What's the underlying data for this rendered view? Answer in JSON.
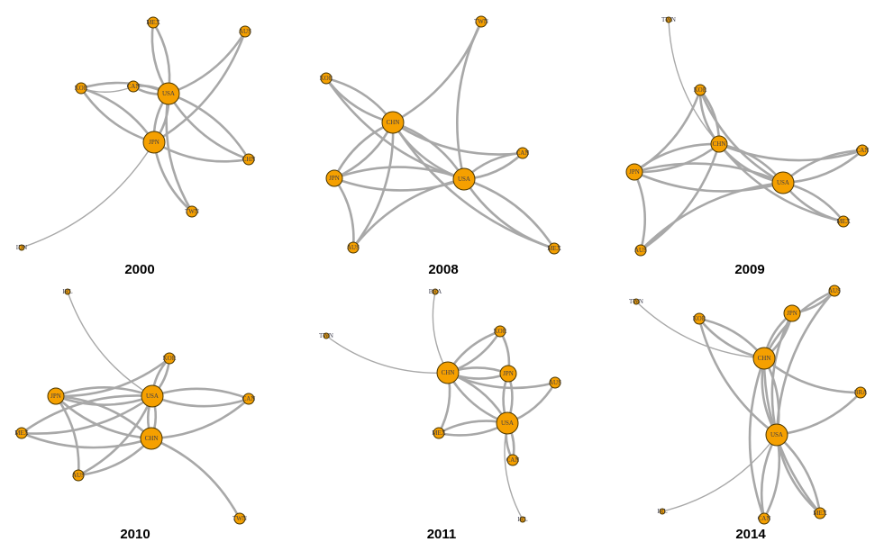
{
  "colors": {
    "node_fill": "#f5a000",
    "node_stroke": "#4a3600",
    "edge": "#a8a8a8",
    "background": "#ffffff"
  },
  "panels": [
    {
      "title": "2000",
      "nodes": [
        {
          "id": "MEX",
          "size": "small"
        },
        {
          "id": "AUS",
          "size": "small"
        },
        {
          "id": "KOR",
          "size": "small"
        },
        {
          "id": "CAN",
          "size": "small"
        },
        {
          "id": "USA",
          "size": "large"
        },
        {
          "id": "JPN",
          "size": "large"
        },
        {
          "id": "CHN",
          "size": "small"
        },
        {
          "id": "TWN",
          "size": "small"
        },
        {
          "id": "IDN",
          "size": "tiny"
        }
      ],
      "edges": [
        [
          "USA",
          "MEX"
        ],
        [
          "MEX",
          "USA"
        ],
        [
          "USA",
          "AUS"
        ],
        [
          "JPN",
          "AUS"
        ],
        [
          "USA",
          "KOR"
        ],
        [
          "JPN",
          "KOR"
        ],
        [
          "CAN",
          "USA"
        ],
        [
          "USA",
          "CAN"
        ],
        [
          "JPN",
          "USA"
        ],
        [
          "USA",
          "JPN"
        ],
        [
          "USA",
          "CHN"
        ],
        [
          "JPN",
          "CHN"
        ],
        [
          "USA",
          "TWN"
        ],
        [
          "JPN",
          "TWN"
        ],
        [
          "IDN",
          "JPN"
        ],
        [
          "CHN",
          "USA"
        ],
        [
          "KOR",
          "JPN"
        ],
        [
          "KOR",
          "CAN"
        ]
      ]
    },
    {
      "title": "2008",
      "nodes": [
        {
          "id": "TWN",
          "size": "small"
        },
        {
          "id": "KOR",
          "size": "small"
        },
        {
          "id": "CHN",
          "size": "large"
        },
        {
          "id": "CAN",
          "size": "small"
        },
        {
          "id": "JPN",
          "size": "medium"
        },
        {
          "id": "USA",
          "size": "large"
        },
        {
          "id": "AUS",
          "size": "small"
        },
        {
          "id": "MEX",
          "size": "small"
        }
      ],
      "edges": [
        [
          "TWN",
          "USA"
        ],
        [
          "CHN",
          "TWN"
        ],
        [
          "KOR",
          "CHN"
        ],
        [
          "CHN",
          "KOR"
        ],
        [
          "KOR",
          "USA"
        ],
        [
          "CHN",
          "CAN"
        ],
        [
          "USA",
          "CAN"
        ],
        [
          "CAN",
          "USA"
        ],
        [
          "JPN",
          "CHN"
        ],
        [
          "CHN",
          "JPN"
        ],
        [
          "JPN",
          "USA"
        ],
        [
          "USA",
          "JPN"
        ],
        [
          "CHN",
          "USA"
        ],
        [
          "USA",
          "CHN"
        ],
        [
          "AUS",
          "CHN"
        ],
        [
          "AUS",
          "JPN"
        ],
        [
          "USA",
          "AUS"
        ],
        [
          "USA",
          "MEX"
        ],
        [
          "MEX",
          "USA"
        ],
        [
          "CHN",
          "MEX"
        ]
      ]
    },
    {
      "title": "2009",
      "nodes": [
        {
          "id": "TWN",
          "size": "tiny"
        },
        {
          "id": "KOR",
          "size": "small"
        },
        {
          "id": "CHN",
          "size": "medium"
        },
        {
          "id": "CAN",
          "size": "small"
        },
        {
          "id": "JPN",
          "size": "medium"
        },
        {
          "id": "USA",
          "size": "large"
        },
        {
          "id": "MEX",
          "size": "small"
        },
        {
          "id": "AUS",
          "size": "small"
        }
      ],
      "edges": [
        [
          "TWN",
          "CHN"
        ],
        [
          "KOR",
          "CHN"
        ],
        [
          "CHN",
          "KOR"
        ],
        [
          "KOR",
          "USA"
        ],
        [
          "JPN",
          "KOR"
        ],
        [
          "CHN",
          "CAN"
        ],
        [
          "USA",
          "CAN"
        ],
        [
          "CAN",
          "USA"
        ],
        [
          "JPN",
          "CHN"
        ],
        [
          "CHN",
          "JPN"
        ],
        [
          "JPN",
          "USA"
        ],
        [
          "USA",
          "JPN"
        ],
        [
          "CHN",
          "USA"
        ],
        [
          "USA",
          "CHN"
        ],
        [
          "USA",
          "MEX"
        ],
        [
          "MEX",
          "USA"
        ],
        [
          "CHN",
          "MEX"
        ],
        [
          "AUS",
          "JPN"
        ],
        [
          "USA",
          "AUS"
        ],
        [
          "AUS",
          "CHN"
        ]
      ]
    },
    {
      "title": "2010",
      "nodes": [
        {
          "id": "IRL",
          "size": "tiny"
        },
        {
          "id": "KOR",
          "size": "small"
        },
        {
          "id": "JPN",
          "size": "medium"
        },
        {
          "id": "USA",
          "size": "large"
        },
        {
          "id": "CAN",
          "size": "small"
        },
        {
          "id": "MEX",
          "size": "small"
        },
        {
          "id": "CHN",
          "size": "large"
        },
        {
          "id": "AUS",
          "size": "small"
        },
        {
          "id": "TWN",
          "size": "small"
        }
      ],
      "edges": [
        [
          "IRL",
          "USA"
        ],
        [
          "KOR",
          "USA"
        ],
        [
          "USA",
          "KOR"
        ],
        [
          "JPN",
          "KOR"
        ],
        [
          "JPN",
          "USA"
        ],
        [
          "USA",
          "JPN"
        ],
        [
          "JPN",
          "CHN"
        ],
        [
          "CHN",
          "JPN"
        ],
        [
          "USA",
          "CAN"
        ],
        [
          "CAN",
          "USA"
        ],
        [
          "CHN",
          "CAN"
        ],
        [
          "MEX",
          "USA"
        ],
        [
          "USA",
          "MEX"
        ],
        [
          "MEX",
          "CHN"
        ],
        [
          "CHN",
          "USA"
        ],
        [
          "USA",
          "CHN"
        ],
        [
          "AUS",
          "JPN"
        ],
        [
          "AUS",
          "USA"
        ],
        [
          "AUS",
          "CHN"
        ],
        [
          "TWN",
          "CHN"
        ]
      ]
    },
    {
      "title": "2011",
      "nodes": [
        {
          "id": "BRA",
          "size": "tiny"
        },
        {
          "id": "TWN",
          "size": "tiny"
        },
        {
          "id": "KOR",
          "size": "small"
        },
        {
          "id": "CHN",
          "size": "large"
        },
        {
          "id": "JPN",
          "size": "medium"
        },
        {
          "id": "AUS",
          "size": "small"
        },
        {
          "id": "MEX",
          "size": "small"
        },
        {
          "id": "USA",
          "size": "large"
        },
        {
          "id": "CAN",
          "size": "small"
        },
        {
          "id": "IRL",
          "size": "tiny"
        }
      ],
      "edges": [
        [
          "BRA",
          "CHN"
        ],
        [
          "TWN",
          "CHN"
        ],
        [
          "CHN",
          "KOR"
        ],
        [
          "KOR",
          "CHN"
        ],
        [
          "JPN",
          "KOR"
        ],
        [
          "CHN",
          "JPN"
        ],
        [
          "JPN",
          "CHN"
        ],
        [
          "JPN",
          "USA"
        ],
        [
          "USA",
          "JPN"
        ],
        [
          "CHN",
          "AUS"
        ],
        [
          "USA",
          "AUS"
        ],
        [
          "CHN",
          "USA"
        ],
        [
          "USA",
          "CHN"
        ],
        [
          "MEX",
          "CHN"
        ],
        [
          "USA",
          "MEX"
        ],
        [
          "MEX",
          "USA"
        ],
        [
          "USA",
          "CAN"
        ],
        [
          "CAN",
          "USA"
        ],
        [
          "USA",
          "IRL"
        ]
      ]
    },
    {
      "title": "2014",
      "nodes": [
        {
          "id": "TWN",
          "size": "tiny"
        },
        {
          "id": "KOR",
          "size": "small"
        },
        {
          "id": "AUS",
          "size": "small"
        },
        {
          "id": "JPN",
          "size": "medium"
        },
        {
          "id": "CHN",
          "size": "large"
        },
        {
          "id": "BRA",
          "size": "small"
        },
        {
          "id": "USA",
          "size": "large"
        },
        {
          "id": "IRL",
          "size": "tiny"
        },
        {
          "id": "CAN",
          "size": "small"
        },
        {
          "id": "MEX",
          "size": "small"
        }
      ],
      "edges": [
        [
          "TWN",
          "CHN"
        ],
        [
          "KOR",
          "CHN"
        ],
        [
          "CHN",
          "KOR"
        ],
        [
          "KOR",
          "USA"
        ],
        [
          "JPN",
          "AUS"
        ],
        [
          "AUS",
          "CHN"
        ],
        [
          "JPN",
          "CHN"
        ],
        [
          "CHN",
          "JPN"
        ],
        [
          "JPN",
          "USA"
        ],
        [
          "CHN",
          "USA"
        ],
        [
          "USA",
          "CHN"
        ],
        [
          "CHN",
          "BRA"
        ],
        [
          "USA",
          "BRA"
        ],
        [
          "IRL",
          "USA"
        ],
        [
          "USA",
          "CAN"
        ],
        [
          "CAN",
          "USA"
        ],
        [
          "USA",
          "MEX"
        ],
        [
          "MEX",
          "USA"
        ],
        [
          "CHN",
          "CAN"
        ],
        [
          "CHN",
          "MEX"
        ],
        [
          "AUS",
          "USA"
        ]
      ]
    }
  ]
}
